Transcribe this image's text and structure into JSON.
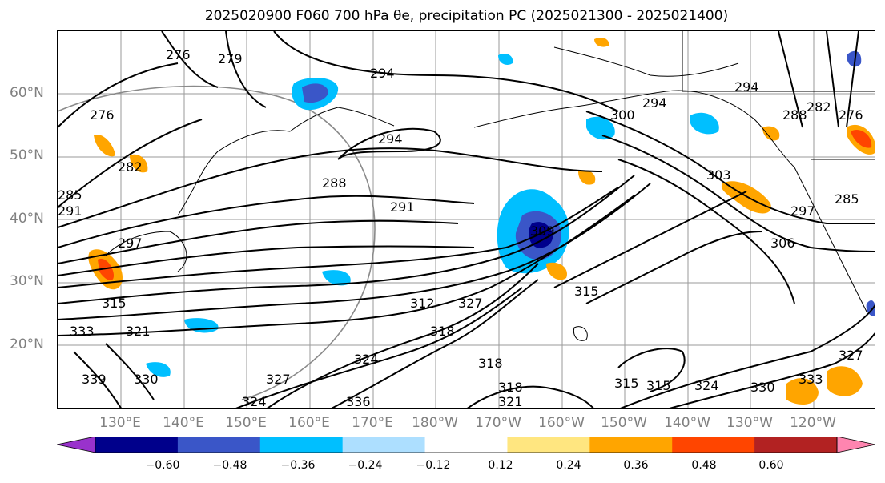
{
  "title": "2025020900 F060 700 hPa θe, precipitation PC (2025021300 - 2025021400)",
  "lat_labels": [
    "60°N",
    "50°N",
    "40°N",
    "30°N",
    "20°N"
  ],
  "lon_labels": [
    "130°E",
    "140°E",
    "150°E",
    "160°E",
    "170°E",
    "180°W",
    "170°W",
    "160°W",
    "150°W",
    "140°W",
    "130°W",
    "120°W"
  ],
  "contour_labels": [
    "276",
    "279",
    "276",
    "294",
    "294",
    "282",
    "285",
    "288",
    "291",
    "300",
    "294",
    "303",
    "285",
    "276",
    "288",
    "282",
    "294",
    "297",
    "291",
    "297",
    "306",
    "309",
    "312",
    "315",
    "321",
    "318",
    "327",
    "324",
    "333",
    "315",
    "339",
    "330",
    "327",
    "336",
    "318",
    "318",
    "321",
    "324",
    "315",
    "315",
    "327",
    "330",
    "333",
    "324"
  ],
  "colorbar": {
    "ticks": [
      "−0.60",
      "−0.48",
      "−0.36",
      "−0.24",
      "−0.12",
      "0.12",
      "0.24",
      "0.36",
      "0.48",
      "0.60"
    ],
    "colors": [
      "#9932CC",
      "#00008B",
      "#3A56C8",
      "#00BFFF",
      "#ADDFFF",
      "#FFFFFF",
      "#FFE680",
      "#FFA500",
      "#FF4500",
      "#B22222",
      "#FF85B0"
    ]
  }
}
